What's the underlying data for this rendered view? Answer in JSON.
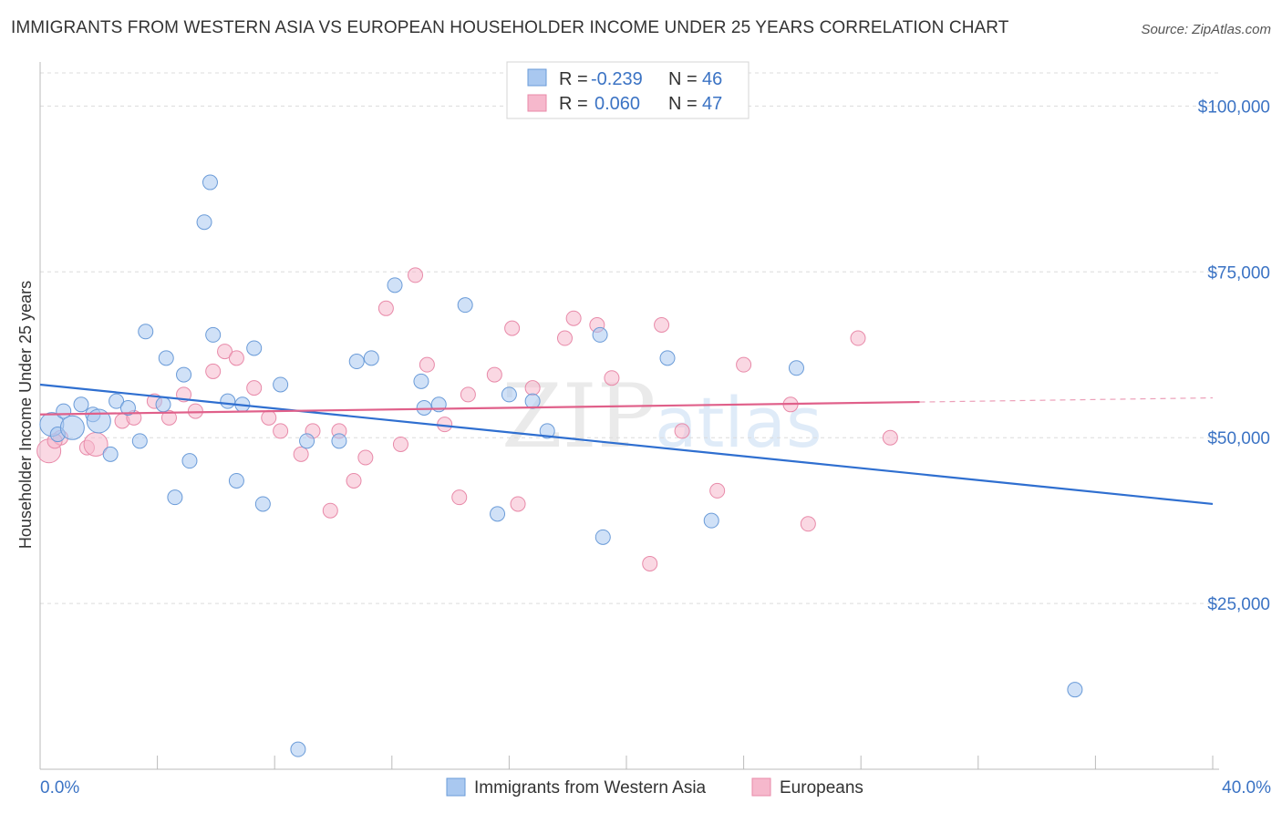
{
  "header": {
    "title": "IMMIGRANTS FROM WESTERN ASIA VS EUROPEAN HOUSEHOLDER INCOME UNDER 25 YEARS CORRELATION CHART",
    "source": "Source: ZipAtlas.com"
  },
  "watermark": {
    "zip": "ZIP",
    "atlas": "atlas"
  },
  "legend": {
    "r_label": "R =",
    "n_label": "N =",
    "rows": [
      {
        "r": "-0.239",
        "n": "46",
        "color": "#a9c8f0"
      },
      {
        "r": "0.060",
        "n": "47",
        "color": "#f6b8cc"
      }
    ]
  },
  "chart_data": {
    "type": "scatter",
    "title": "IMMIGRANTS FROM WESTERN ASIA VS EUROPEAN HOUSEHOLDER INCOME UNDER 25 YEARS CORRELATION CHART",
    "xlabel": "",
    "ylabel": "Householder Income Under 25 years",
    "xlim": [
      0,
      40
    ],
    "ylim": [
      0,
      105000
    ],
    "x_tick_labels": [
      "0.0%",
      "40.0%"
    ],
    "y_ticks": [
      25000,
      50000,
      75000,
      100000
    ],
    "y_tick_labels": [
      "$25,000",
      "$50,000",
      "$75,000",
      "$100,000"
    ],
    "grid": true,
    "series": [
      {
        "name": "Immigrants from Western Asia",
        "color": "#a9c8f0",
        "stroke": "#6a9bd8",
        "trend": {
          "x0": 0,
          "y0": 58000,
          "x1": 40,
          "y1": 40000,
          "x_end": 40,
          "color": "#2f6fd0"
        },
        "points": [
          [
            0.4,
            52000
          ],
          [
            0.6,
            50500
          ],
          [
            0.8,
            54000
          ],
          [
            1.1,
            51500
          ],
          [
            1.4,
            55000
          ],
          [
            1.8,
            53500
          ],
          [
            2.0,
            52500
          ],
          [
            2.4,
            47500
          ],
          [
            2.6,
            55500
          ],
          [
            3.0,
            54500
          ],
          [
            3.4,
            49500
          ],
          [
            3.6,
            66000
          ],
          [
            4.2,
            55000
          ],
          [
            4.3,
            62000
          ],
          [
            4.6,
            41000
          ],
          [
            4.9,
            59500
          ],
          [
            5.1,
            46500
          ],
          [
            5.6,
            82500
          ],
          [
            5.8,
            88500
          ],
          [
            5.9,
            65500
          ],
          [
            6.4,
            55500
          ],
          [
            6.7,
            43500
          ],
          [
            6.9,
            55000
          ],
          [
            7.3,
            63500
          ],
          [
            7.6,
            40000
          ],
          [
            8.2,
            58000
          ],
          [
            8.8,
            3000
          ],
          [
            9.1,
            49500
          ],
          [
            10.2,
            49500
          ],
          [
            10.8,
            61500
          ],
          [
            11.3,
            62000
          ],
          [
            12.1,
            73000
          ],
          [
            13.0,
            58500
          ],
          [
            13.1,
            54500
          ],
          [
            13.6,
            55000
          ],
          [
            14.5,
            70000
          ],
          [
            15.6,
            38500
          ],
          [
            16.0,
            56500
          ],
          [
            16.8,
            55500
          ],
          [
            17.3,
            51000
          ],
          [
            19.1,
            65500
          ],
          [
            19.2,
            35000
          ],
          [
            21.4,
            62000
          ],
          [
            22.9,
            37500
          ],
          [
            25.8,
            60500
          ],
          [
            35.3,
            12000
          ]
        ]
      },
      {
        "name": "Europeans",
        "color": "#f6b8cc",
        "stroke": "#e88aa9",
        "trend": {
          "x0": 0,
          "y0": 53500,
          "x1": 40,
          "y1": 56000,
          "x_end": 30,
          "color": "#e0608a"
        },
        "points": [
          [
            0.3,
            48000
          ],
          [
            0.7,
            50000
          ],
          [
            1.6,
            48500
          ],
          [
            2.8,
            52500
          ],
          [
            3.2,
            53000
          ],
          [
            3.9,
            55500
          ],
          [
            4.4,
            53000
          ],
          [
            4.9,
            56500
          ],
          [
            5.3,
            54000
          ],
          [
            5.9,
            60000
          ],
          [
            6.3,
            63000
          ],
          [
            6.7,
            62000
          ],
          [
            7.3,
            57500
          ],
          [
            7.8,
            53000
          ],
          [
            8.2,
            51000
          ],
          [
            8.9,
            47500
          ],
          [
            9.3,
            51000
          ],
          [
            9.9,
            39000
          ],
          [
            10.2,
            51000
          ],
          [
            10.7,
            43500
          ],
          [
            11.1,
            47000
          ],
          [
            11.8,
            69500
          ],
          [
            12.3,
            49000
          ],
          [
            12.8,
            74500
          ],
          [
            13.2,
            61000
          ],
          [
            13.8,
            52000
          ],
          [
            14.3,
            41000
          ],
          [
            14.6,
            56500
          ],
          [
            15.5,
            59500
          ],
          [
            16.1,
            66500
          ],
          [
            16.3,
            40000
          ],
          [
            16.8,
            57500
          ],
          [
            17.9,
            65000
          ],
          [
            18.2,
            68000
          ],
          [
            19.0,
            67000
          ],
          [
            19.5,
            59000
          ],
          [
            20.8,
            31000
          ],
          [
            21.2,
            67000
          ],
          [
            21.9,
            51000
          ],
          [
            23.1,
            42000
          ],
          [
            24.0,
            61000
          ],
          [
            25.6,
            55000
          ],
          [
            26.2,
            37000
          ],
          [
            27.9,
            65000
          ],
          [
            29.0,
            50000
          ],
          [
            1.9,
            49000
          ],
          [
            0.5,
            49500
          ]
        ]
      }
    ]
  },
  "bottom_legend": {
    "items": [
      {
        "label": "Immigrants from Western Asia"
      },
      {
        "label": "Europeans"
      }
    ]
  }
}
